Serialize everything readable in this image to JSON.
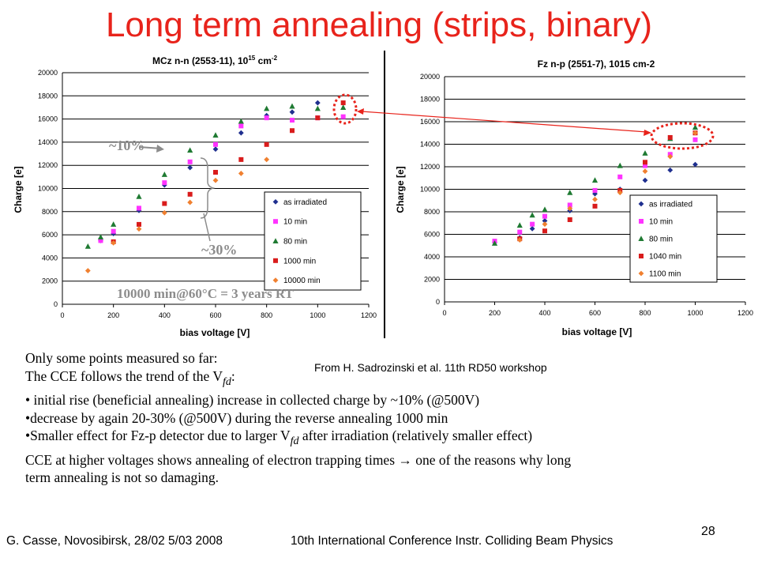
{
  "slide": {
    "title": "Long term annealing (strips, binary)",
    "page_number": "28",
    "reference": "From H. Sadrozinski et al. 11th RD50 workshop",
    "footer_left": "G. Casse, Novosibirsk, 28/02 5/03 2008",
    "footer_center": "10th International Conference Instr. Colliding Beam Physics",
    "annotations": {
      "rise": "~10%",
      "decrease": "~30%",
      "equivalence": "10000 min@60°C = 3 years RT"
    },
    "body": {
      "line1": "Only some points measured so far:",
      "line2_pre": "The CCE follows the trend of the V",
      "line2_sub": "fd",
      "line2_post": ":",
      "bullet1": "initial rise (beneficial annealing) increase in collected charge by ~10% (@500V)",
      "bullet2": "decrease by again 20-30%  (@500V)  during the reverse annealing 1000 min",
      "bullet3_pre": "Smaller effect for Fz-p detector due to larger V",
      "bullet3_sub": "fd",
      "bullet3_post": " after irradiation (relatively smaller effect)",
      "line6_pre": "CCE at higher voltages shows annealing of electron trapping times ",
      "line6_arrow": "→",
      "line6_post": " one of the reasons why long",
      "line7": "term annealing is not so damaging."
    },
    "colors": {
      "title": "#e8231b",
      "as_irradiated": "#1f2f8f",
      "min10": "#ff33ff",
      "min80": "#1f7a32",
      "min1000": "#d91c1c",
      "min10000": "#f08030",
      "highlight": "#e8231b"
    }
  },
  "chart_data": [
    {
      "type": "scatter",
      "title": "MCz n-n (2553-11), 10^15 cm^-2",
      "title_main": "MCz n-n (2553-11), 10",
      "title_sup": "15",
      "title_tail": " cm",
      "title_sup2": "-2",
      "xlabel": "bias voltage [V]",
      "ylabel": "Charge [e]",
      "xlim": [
        0,
        1200
      ],
      "ylim": [
        0,
        20000
      ],
      "xticks": [
        "0",
        "200",
        "400",
        "600",
        "800",
        "1000",
        "1200"
      ],
      "yticks": [
        "0",
        "2000",
        "4000",
        "6000",
        "8000",
        "10000",
        "12000",
        "14000",
        "16000",
        "18000",
        "20000"
      ],
      "grid": true,
      "legend_position": "bottom-right",
      "series": [
        {
          "name": "as irradiated",
          "marker": "diamond",
          "color_key": "as_irradiated",
          "x": [
            150,
            200,
            300,
            400,
            500,
            600,
            700,
            800,
            900,
            1000
          ],
          "y": [
            5500,
            6100,
            8100,
            10300,
            11800,
            13400,
            14800,
            16300,
            16600,
            17400
          ]
        },
        {
          "name": "10 min",
          "marker": "square",
          "color_key": "min10",
          "x": [
            150,
            200,
            300,
            400,
            500,
            600,
            700,
            800,
            900,
            1000,
            1100
          ],
          "y": [
            5500,
            6300,
            8300,
            10500,
            12300,
            13800,
            15400,
            16100,
            15900,
            16100,
            16200
          ]
        },
        {
          "name": "80 min",
          "marker": "triangle",
          "color_key": "min80",
          "x": [
            100,
            150,
            200,
            300,
            400,
            500,
            600,
            700,
            800,
            900,
            1000,
            1100
          ],
          "y": [
            5000,
            5800,
            6900,
            9300,
            11200,
            13300,
            14600,
            15800,
            16900,
            17100,
            16900,
            17000
          ]
        },
        {
          "name": "1000 min",
          "marker": "square",
          "color_key": "min1000",
          "x": [
            200,
            300,
            400,
            500,
            600,
            700,
            800,
            900,
            1000,
            1100
          ],
          "y": [
            5400,
            6900,
            8700,
            9500,
            11400,
            12500,
            13800,
            15000,
            16100,
            17400
          ]
        },
        {
          "name": "10000 min",
          "marker": "diamond",
          "color_key": "min10000",
          "x": [
            100,
            200,
            300,
            400,
            500,
            600,
            700,
            800
          ],
          "y": [
            2900,
            5300,
            6500,
            7900,
            8800,
            10700,
            11300,
            12500
          ]
        }
      ]
    },
    {
      "type": "scatter",
      "title": "Fz n-p (2551-7), 1015 cm-2",
      "xlabel": "bias voltage [V]",
      "ylabel": "Charge [e]",
      "xlim": [
        0,
        1200
      ],
      "ylim": [
        0,
        20000
      ],
      "xticks": [
        "0",
        "200",
        "400",
        "600",
        "800",
        "1000",
        "1200"
      ],
      "yticks": [
        "0",
        "2000",
        "4000",
        "6000",
        "8000",
        "10000",
        "12000",
        "14000",
        "16000",
        "18000",
        "20000"
      ],
      "grid": true,
      "legend_position": "bottom-right",
      "series": [
        {
          "name": "as irradiated",
          "marker": "diamond",
          "color_key": "as_irradiated",
          "x": [
            200,
            300,
            350,
            400,
            500,
            600,
            700,
            800,
            900,
            1000
          ],
          "y": [
            5300,
            5700,
            6500,
            7200,
            8100,
            9600,
            10000,
            10800,
            11700,
            12200
          ]
        },
        {
          "name": "10 min",
          "marker": "square",
          "color_key": "min10",
          "x": [
            200,
            300,
            350,
            400,
            500,
            600,
            700,
            800,
            900,
            1000
          ],
          "y": [
            5400,
            6200,
            6900,
            7600,
            8600,
            9900,
            11100,
            12100,
            13100,
            14400
          ]
        },
        {
          "name": "80 min",
          "marker": "triangle",
          "color_key": "min80",
          "x": [
            200,
            300,
            350,
            400,
            500,
            600,
            700,
            800,
            900,
            1000
          ],
          "y": [
            5200,
            6800,
            7700,
            8200,
            9700,
            10800,
            12100,
            13200,
            14500,
            15500
          ]
        },
        {
          "name": "1040 min",
          "marker": "square",
          "color_key": "min1000",
          "x": [
            300,
            400,
            500,
            600,
            700,
            800,
            900,
            1000
          ],
          "y": [
            5600,
            6300,
            7300,
            8500,
            9900,
            12400,
            14600,
            15000
          ]
        },
        {
          "name": "1100 min",
          "marker": "diamond",
          "color_key": "min10000",
          "x": [
            300,
            400,
            500,
            600,
            700,
            800,
            900,
            1000
          ],
          "y": [
            5500,
            6900,
            8300,
            9100,
            9700,
            11600,
            12900,
            15000
          ]
        }
      ]
    }
  ]
}
